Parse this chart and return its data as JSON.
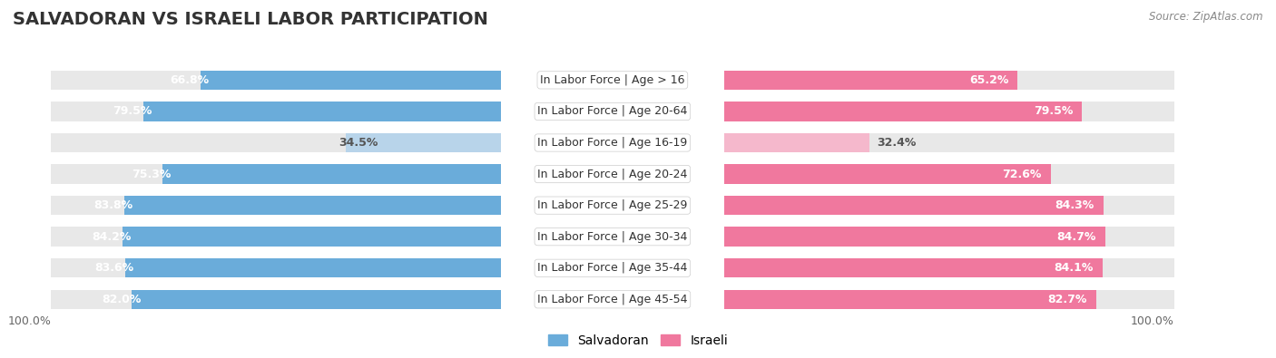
{
  "title": "SALVADORAN VS ISRAELI LABOR PARTICIPATION",
  "source": "Source: ZipAtlas.com",
  "categories": [
    "In Labor Force | Age > 16",
    "In Labor Force | Age 20-64",
    "In Labor Force | Age 16-19",
    "In Labor Force | Age 20-24",
    "In Labor Force | Age 25-29",
    "In Labor Force | Age 30-34",
    "In Labor Force | Age 35-44",
    "In Labor Force | Age 45-54"
  ],
  "salvadoran": [
    66.8,
    79.5,
    34.5,
    75.3,
    83.8,
    84.2,
    83.6,
    82.0
  ],
  "israeli": [
    65.2,
    79.5,
    32.4,
    72.6,
    84.3,
    84.7,
    84.1,
    82.7
  ],
  "salvadoran_color": "#6AACDA",
  "salvadoran_color_light": "#B8D4EA",
  "israeli_color": "#F0789E",
  "israeli_color_light": "#F5B8CC",
  "track_color": "#e8e8e8",
  "row_bg": "#f2f2f2",
  "label_white": "#ffffff",
  "label_dark": "#555555",
  "max_val": 100.0,
  "title_fontsize": 14,
  "label_fontsize": 9,
  "category_fontsize": 9,
  "axis_label_fontsize": 9,
  "legend_fontsize": 10
}
